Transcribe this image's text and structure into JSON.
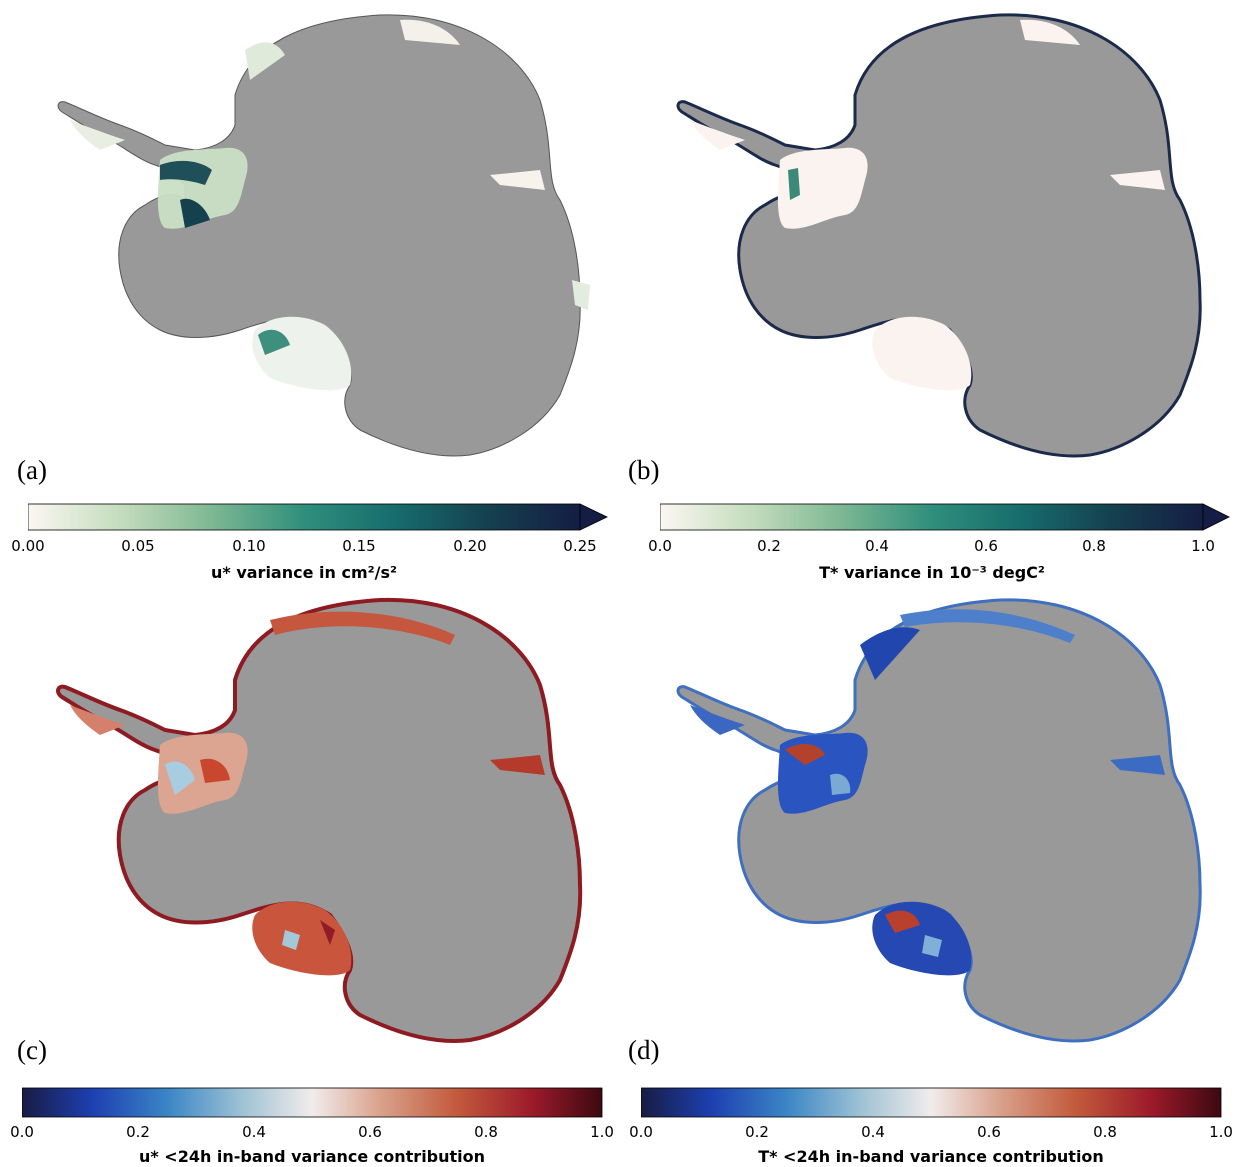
{
  "panels": [
    {
      "id": "a",
      "label": "(a)",
      "cmap": "tempo",
      "colorbar": {
        "ticks": [
          "0.00",
          "0.05",
          "0.10",
          "0.15",
          "0.20",
          "0.25"
        ],
        "title": "u* variance in cm²/s²",
        "range": [
          0.0,
          0.25
        ],
        "extend": "max"
      }
    },
    {
      "id": "b",
      "label": "(b)",
      "cmap": "tempo",
      "colorbar": {
        "ticks": [
          "0.0",
          "0.2",
          "0.4",
          "0.6",
          "0.8",
          "1.0"
        ],
        "title": "T* variance in 10⁻³ degC²",
        "range": [
          0.0,
          1.0
        ],
        "extend": "max"
      }
    },
    {
      "id": "c",
      "label": "(c)",
      "cmap": "balance",
      "colorbar": {
        "ticks": [
          "0.0",
          "0.2",
          "0.4",
          "0.6",
          "0.8",
          "1.0"
        ],
        "title": "u* <24h in-band variance contribution",
        "range": [
          0.0,
          1.0
        ],
        "extend": "neither"
      }
    },
    {
      "id": "d",
      "label": "(d)",
      "cmap": "balance",
      "colorbar": {
        "ticks": [
          "0.0",
          "0.2",
          "0.4",
          "0.6",
          "0.8",
          "1.0"
        ],
        "title": "T* <24h in-band variance contribution",
        "range": [
          0.0,
          1.0
        ],
        "extend": "neither"
      }
    }
  ],
  "colors": {
    "land": "#999999",
    "coast": "#555555",
    "tempo": [
      "#fbf7f2",
      "#c3dcbc",
      "#7fb894",
      "#2f8f7c",
      "#166b6c",
      "#15414f",
      "#151d44"
    ],
    "balance": [
      "#181c43",
      "#1d3fb0",
      "#3a85c6",
      "#9fc2d4",
      "#f1ecec",
      "#d9a08a",
      "#c25a3c",
      "#9c1a2a",
      "#3c0911"
    ]
  },
  "chart_data": [
    {
      "type": "heatmap",
      "panel": "(a)",
      "title": "",
      "colorbar_label": "u* variance in cm²/s²",
      "colorbar_range": [
        0.0,
        0.25
      ],
      "colorbar_extend": "max"
    },
    {
      "type": "heatmap",
      "panel": "(b)",
      "title": "",
      "colorbar_label": "T* variance in 10⁻³ degC²",
      "colorbar_range": [
        0.0,
        1.0
      ],
      "colorbar_extend": "max"
    },
    {
      "type": "heatmap",
      "panel": "(c)",
      "title": "",
      "colorbar_label": "u* <24h in-band variance contribution",
      "colorbar_range": [
        0.0,
        1.0
      ]
    },
    {
      "type": "heatmap",
      "panel": "(d)",
      "title": "",
      "colorbar_label": "T* <24h in-band variance contribution",
      "colorbar_range": [
        0.0,
        1.0
      ]
    }
  ]
}
